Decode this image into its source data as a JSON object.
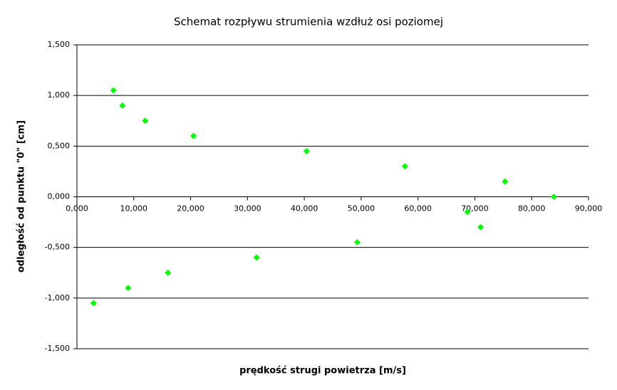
{
  "chart_data": {
    "type": "scatter",
    "title": "Schemat rozpływu strumienia wzdłuż osi poziomej",
    "x_label": "prędkość strugi powietrza [m/s]",
    "y_label": "odległość od punktu \"0\" [cm]",
    "x": [
      6400,
      8000,
      12000,
      20500,
      40400,
      57700,
      75300,
      83900,
      71000,
      68700,
      49300,
      31600,
      16000,
      9000,
      2900
    ],
    "values": [
      1.05,
      0.9,
      0.75,
      0.6,
      0.45,
      0.3,
      0.15,
      0,
      -0.3,
      -0.15,
      -0.45,
      -0.6,
      -0.75,
      -0.9,
      -1.05
    ],
    "color": "#00ff00",
    "xlim": [
      0,
      90000
    ],
    "ylim": [
      -1.5,
      1.5
    ],
    "xticks": [
      {
        "value": 0,
        "label": "0,000"
      },
      {
        "value": 10000,
        "label": "10,000"
      },
      {
        "value": 20000,
        "label": "20,000"
      },
      {
        "value": 30000,
        "label": "30,000"
      },
      {
        "value": 40000,
        "label": "40,000"
      },
      {
        "value": 50000,
        "label": "50,000"
      },
      {
        "value": 60000,
        "label": "60,000"
      },
      {
        "value": 70000,
        "label": "70,000"
      },
      {
        "value": 80000,
        "label": "80,000"
      },
      {
        "value": 90000,
        "label": "90,000"
      }
    ],
    "yticks": [
      {
        "value": 1.5,
        "label": "1,500"
      },
      {
        "value": 1,
        "label": "1,000"
      },
      {
        "value": 0.5,
        "label": "0,500"
      },
      {
        "value": 0,
        "label": "0,000"
      },
      {
        "value": -0.5,
        "label": "-0,500"
      },
      {
        "value": -1,
        "label": "-1,000"
      },
      {
        "value": -1.5,
        "label": "-1,500"
      }
    ],
    "grid": true
  }
}
